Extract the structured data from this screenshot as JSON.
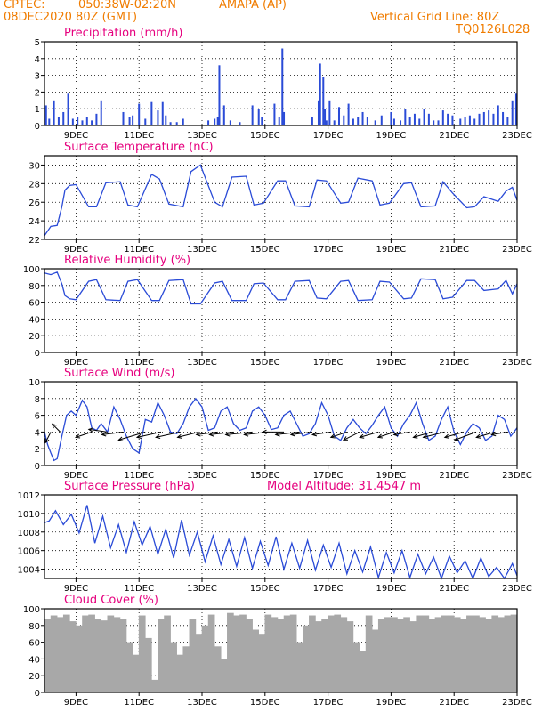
{
  "header": {
    "source": "CPTEC:",
    "coords": "050:38W-02:20N",
    "station": "AMAPA (AP)",
    "datetime": "08DEC2020 80Z (GMT)",
    "grid_note": "Vertical Grid Line: 80Z",
    "code": "TQ0126L028"
  },
  "colors": {
    "header": "#f07c00",
    "title": "#e6007e",
    "line": "#2a4bd7",
    "bar": "#2a4bd7",
    "cloud": "#a8a8a8",
    "arrow": "#000000"
  },
  "x_axis": {
    "ticks": [
      "9DEC",
      "11DEC",
      "13DEC",
      "15DEC",
      "17DEC",
      "19DEC",
      "21DEC",
      "23DEC"
    ],
    "tick_days": [
      9,
      11,
      13,
      15,
      17,
      19,
      21,
      23
    ],
    "range_days": [
      8,
      23
    ]
  },
  "chart_data": [
    {
      "type": "bar",
      "title": "Precipitation (mm/h)",
      "ylim": [
        0,
        5
      ],
      "yticks": [
        0,
        1,
        2,
        3,
        4,
        5
      ],
      "x": [
        8.05,
        8.15,
        8.3,
        8.45,
        8.6,
        8.75,
        8.9,
        9.05,
        9.2,
        9.35,
        9.5,
        9.65,
        9.8,
        10.5,
        10.7,
        10.8,
        11.0,
        11.2,
        11.4,
        11.6,
        11.75,
        11.85,
        12.0,
        12.2,
        12.4,
        13.2,
        13.4,
        13.5,
        13.55,
        13.7,
        13.9,
        14.2,
        14.6,
        14.8,
        14.9,
        15.3,
        15.45,
        15.55,
        15.6,
        16.5,
        16.7,
        16.75,
        16.85,
        16.9,
        16.95,
        17.05,
        17.2,
        17.35,
        17.5,
        17.65,
        17.8,
        17.95,
        18.1,
        18.25,
        18.5,
        18.7,
        19.0,
        19.1,
        19.3,
        19.45,
        19.6,
        19.75,
        19.9,
        20.05,
        20.2,
        20.35,
        20.5,
        20.65,
        20.8,
        20.95,
        21.2,
        21.35,
        21.5,
        21.65,
        21.8,
        21.95,
        22.1,
        22.25,
        22.4,
        22.55,
        22.7,
        22.85,
        22.97
      ],
      "values": [
        1.2,
        0.4,
        1.5,
        0.5,
        0.8,
        1.9,
        0.4,
        0.5,
        0.3,
        0.5,
        0.3,
        0.7,
        1.5,
        0.8,
        0.5,
        0.6,
        1.3,
        0.4,
        1.4,
        0.9,
        1.4,
        0.6,
        0.2,
        0.2,
        0.4,
        0.3,
        0.4,
        0.5,
        3.6,
        1.2,
        0.3,
        0.2,
        1.2,
        1.0,
        0.5,
        1.3,
        0.5,
        4.6,
        0.8,
        0.5,
        1.5,
        3.7,
        2.9,
        1.0,
        0.3,
        1.5,
        0.3,
        1.1,
        0.6,
        1.3,
        0.4,
        0.5,
        0.8,
        0.5,
        0.3,
        0.6,
        0.8,
        0.4,
        0.3,
        1.0,
        0.5,
        0.7,
        0.4,
        1.0,
        0.7,
        0.3,
        0.3,
        0.9,
        0.7,
        0.6,
        0.4,
        0.5,
        0.6,
        0.4,
        0.7,
        0.8,
        0.9,
        0.7,
        1.2,
        0.8,
        0.5,
        1.5,
        1.9
      ]
    },
    {
      "type": "line",
      "title": "Surface Temperature (nC)",
      "ylim": [
        22,
        31
      ],
      "yticks": [
        22,
        24,
        26,
        28,
        30
      ],
      "x": [
        8.0,
        8.2,
        8.4,
        8.55,
        8.65,
        8.8,
        9.0,
        9.4,
        9.65,
        9.95,
        10.4,
        10.65,
        10.95,
        11.4,
        11.65,
        11.95,
        12.4,
        12.65,
        12.95,
        13.4,
        13.65,
        13.95,
        14.4,
        14.65,
        14.95,
        15.4,
        15.65,
        15.95,
        16.4,
        16.65,
        16.95,
        17.4,
        17.65,
        17.95,
        18.4,
        18.65,
        18.95,
        19.4,
        19.65,
        19.95,
        20.4,
        20.65,
        20.95,
        21.4,
        21.65,
        21.95,
        22.4,
        22.65,
        22.85,
        23.0
      ],
      "values": [
        22.4,
        23.4,
        23.5,
        25.5,
        27.3,
        27.8,
        27.9,
        25.5,
        25.5,
        28.1,
        28.2,
        25.7,
        25.5,
        29.0,
        28.5,
        25.8,
        25.5,
        29.3,
        30.0,
        26.0,
        25.5,
        28.7,
        28.8,
        25.7,
        25.9,
        28.3,
        28.3,
        25.6,
        25.5,
        28.4,
        28.3,
        25.9,
        26.0,
        28.6,
        28.3,
        25.7,
        25.9,
        28.0,
        28.1,
        25.5,
        25.6,
        28.2,
        27.0,
        25.4,
        25.5,
        26.6,
        26.1,
        27.2,
        27.6,
        26.2
      ]
    },
    {
      "type": "line",
      "title": "Relative Humidity (%)",
      "ylim": [
        0,
        100
      ],
      "yticks": [
        0,
        20,
        40,
        60,
        80,
        100
      ],
      "x": [
        8.0,
        8.2,
        8.4,
        8.55,
        8.65,
        8.8,
        9.0,
        9.4,
        9.65,
        9.95,
        10.4,
        10.65,
        10.95,
        11.4,
        11.65,
        11.95,
        12.4,
        12.65,
        12.95,
        13.4,
        13.65,
        13.95,
        14.4,
        14.65,
        14.95,
        15.4,
        15.65,
        15.95,
        16.4,
        16.65,
        16.95,
        17.4,
        17.65,
        17.95,
        18.4,
        18.65,
        18.95,
        19.4,
        19.65,
        19.95,
        20.4,
        20.65,
        20.95,
        21.4,
        21.65,
        21.95,
        22.4,
        22.65,
        22.85,
        23.0
      ],
      "values": [
        95,
        93,
        96,
        82,
        68,
        64,
        63,
        85,
        87,
        63,
        62,
        85,
        87,
        62,
        62,
        86,
        87,
        58,
        58,
        83,
        85,
        62,
        62,
        82,
        83,
        63,
        63,
        85,
        86,
        65,
        64,
        85,
        86,
        62,
        63,
        85,
        84,
        64,
        65,
        88,
        87,
        64,
        66,
        86,
        86,
        74,
        76,
        86,
        70,
        82
      ]
    },
    {
      "type": "line",
      "title": "Surface Wind (m/s)",
      "ylim": [
        0,
        10
      ],
      "yticks": [
        0,
        2,
        4,
        6,
        8,
        10
      ],
      "x": [
        8.0,
        8.1,
        8.2,
        8.3,
        8.4,
        8.55,
        8.7,
        8.85,
        9.0,
        9.2,
        9.35,
        9.5,
        9.65,
        9.8,
        10.0,
        10.2,
        10.4,
        10.6,
        10.8,
        11.0,
        11.2,
        11.4,
        11.6,
        11.8,
        12.0,
        12.2,
        12.4,
        12.6,
        12.8,
        13.0,
        13.2,
        13.4,
        13.6,
        13.8,
        14.0,
        14.2,
        14.4,
        14.6,
        14.8,
        15.0,
        15.2,
        15.4,
        15.6,
        15.8,
        16.0,
        16.2,
        16.4,
        16.6,
        16.8,
        17.0,
        17.2,
        17.4,
        17.6,
        17.8,
        18.0,
        18.2,
        18.4,
        18.6,
        18.8,
        19.0,
        19.2,
        19.4,
        19.6,
        19.8,
        20.0,
        20.2,
        20.4,
        20.6,
        20.8,
        21.0,
        21.2,
        21.4,
        21.6,
        21.8,
        22.0,
        22.2,
        22.4,
        22.6,
        22.8,
        23.0
      ],
      "values": [
        4.0,
        2.5,
        1.5,
        0.6,
        0.8,
        3.5,
        6.0,
        6.5,
        6.0,
        7.8,
        7.0,
        4.5,
        4.2,
        5.0,
        4.0,
        7.0,
        5.5,
        3.5,
        2.0,
        1.5,
        5.5,
        5.2,
        7.5,
        6.0,
        4.0,
        3.8,
        5.0,
        7.0,
        8.0,
        7.0,
        4.2,
        4.5,
        6.5,
        7.0,
        5.0,
        4.2,
        4.5,
        6.5,
        7.0,
        6.0,
        4.3,
        4.5,
        6.0,
        6.5,
        5.0,
        3.5,
        3.8,
        5.0,
        7.5,
        6.0,
        3.5,
        3.0,
        4.5,
        5.5,
        4.5,
        3.8,
        4.8,
        6.0,
        7.0,
        4.5,
        3.5,
        5.0,
        6.0,
        7.5,
        5.0,
        3.0,
        3.5,
        5.5,
        7.0,
        4.0,
        2.5,
        4.0,
        5.0,
        4.5,
        3.0,
        3.5,
        6.0,
        5.5,
        3.5,
        4.5
      ],
      "vectors": {
        "x": [
          8.2,
          8.5,
          9.5,
          10.0,
          10.5,
          11.2,
          11.7,
          12.3,
          12.9,
          13.5,
          14.0,
          14.6,
          15.1,
          15.6,
          16.1,
          16.5,
          17.1,
          17.6,
          18.0,
          18.6,
          19.1,
          19.6,
          20.3,
          20.7,
          21.3,
          21.7,
          22.3,
          22.7
        ],
        "u": [
          -1.0,
          -1.5,
          -3.0,
          -3.5,
          -4.0,
          -5.0,
          -4.5,
          -4.5,
          -4.0,
          -4.0,
          -4.5,
          -5.0,
          -4.5,
          -4.0,
          -4.5,
          -4.0,
          -3.5,
          -3.0,
          -3.0,
          -3.5,
          -3.0,
          -3.0,
          -3.5,
          -4.0,
          -3.5,
          -4.0,
          -3.5,
          -3.0
        ],
        "v": [
          -2.0,
          1.5,
          -1.0,
          0.5,
          -0.5,
          -1.5,
          -1.0,
          -1.0,
          -1.0,
          -0.5,
          -0.5,
          -0.5,
          -0.5,
          0.0,
          -0.5,
          -0.5,
          -0.5,
          -1.0,
          -1.5,
          -1.0,
          -1.0,
          -0.5,
          -1.0,
          -1.0,
          -1.0,
          -1.5,
          -1.0,
          -0.5
        ]
      }
    },
    {
      "type": "line",
      "title": "Surface Pressure (hPa)",
      "annotation": "Model Altitude: 31.4547 m",
      "ylim": [
        1003,
        1012
      ],
      "yticks": [
        1004,
        1006,
        1008,
        1010,
        1012
      ],
      "x": [
        8.0,
        8.15,
        8.35,
        8.6,
        8.85,
        9.1,
        9.35,
        9.6,
        9.85,
        10.1,
        10.35,
        10.6,
        10.85,
        11.1,
        11.35,
        11.6,
        11.85,
        12.1,
        12.35,
        12.6,
        12.85,
        13.1,
        13.35,
        13.6,
        13.85,
        14.1,
        14.35,
        14.6,
        14.85,
        15.1,
        15.35,
        15.6,
        15.85,
        16.1,
        16.35,
        16.6,
        16.85,
        17.1,
        17.35,
        17.6,
        17.85,
        18.1,
        18.35,
        18.6,
        18.85,
        19.1,
        19.35,
        19.6,
        19.85,
        20.1,
        20.35,
        20.6,
        20.85,
        21.1,
        21.35,
        21.6,
        21.85,
        22.1,
        22.35,
        22.6,
        22.85,
        23.0
      ],
      "values": [
        1009,
        1009.2,
        1010.3,
        1008.8,
        1009.9,
        1007.9,
        1010.9,
        1006.8,
        1009.7,
        1006.3,
        1008.8,
        1005.8,
        1009.1,
        1006.6,
        1008.6,
        1005.6,
        1008.3,
        1005.2,
        1009.3,
        1005.5,
        1008.0,
        1004.8,
        1007.6,
        1004.5,
        1007.2,
        1004.3,
        1007.4,
        1004.1,
        1007.0,
        1004.4,
        1007.5,
        1004.0,
        1006.8,
        1004.1,
        1007.1,
        1003.9,
        1006.6,
        1004.2,
        1006.8,
        1003.5,
        1006.0,
        1003.7,
        1006.4,
        1003.1,
        1005.8,
        1003.6,
        1006.0,
        1003.1,
        1005.6,
        1003.5,
        1005.3,
        1003.0,
        1005.4,
        1003.6,
        1004.9,
        1003.0,
        1005.2,
        1003.2,
        1004.2,
        1003.0,
        1004.6,
        1003.3
      ]
    },
    {
      "type": "bar",
      "title": "Cloud Cover (%)",
      "ylim": [
        0,
        100
      ],
      "yticks": [
        0,
        20,
        40,
        60,
        80,
        100
      ],
      "x": [
        8.1,
        8.3,
        8.5,
        8.7,
        8.9,
        9.1,
        9.3,
        9.5,
        9.7,
        9.9,
        10.1,
        10.3,
        10.5,
        10.7,
        10.9,
        11.1,
        11.3,
        11.5,
        11.7,
        11.9,
        12.1,
        12.3,
        12.5,
        12.7,
        12.9,
        13.1,
        13.3,
        13.5,
        13.7,
        13.9,
        14.1,
        14.3,
        14.5,
        14.7,
        14.9,
        15.1,
        15.3,
        15.5,
        15.7,
        15.9,
        16.1,
        16.3,
        16.5,
        16.7,
        16.9,
        17.1,
        17.3,
        17.5,
        17.7,
        17.9,
        18.1,
        18.3,
        18.5,
        18.7,
        18.9,
        19.1,
        19.3,
        19.5,
        19.7,
        19.9,
        20.1,
        20.3,
        20.5,
        20.7,
        20.9,
        21.1,
        21.3,
        21.5,
        21.7,
        21.9,
        22.1,
        22.3,
        22.5,
        22.7,
        22.9
      ],
      "values": [
        88,
        92,
        90,
        93,
        85,
        80,
        92,
        93,
        88,
        86,
        92,
        90,
        88,
        60,
        45,
        92,
        65,
        15,
        88,
        92,
        60,
        45,
        55,
        88,
        70,
        80,
        93,
        55,
        40,
        95,
        92,
        93,
        88,
        75,
        70,
        93,
        90,
        88,
        92,
        93,
        60,
        80,
        92,
        85,
        88,
        92,
        93,
        90,
        85,
        60,
        50,
        92,
        75,
        88,
        90,
        90,
        88,
        90,
        85,
        92,
        92,
        88,
        90,
        92,
        92,
        90,
        88,
        92,
        92,
        90,
        88,
        92,
        90,
        92,
        93
      ]
    }
  ]
}
